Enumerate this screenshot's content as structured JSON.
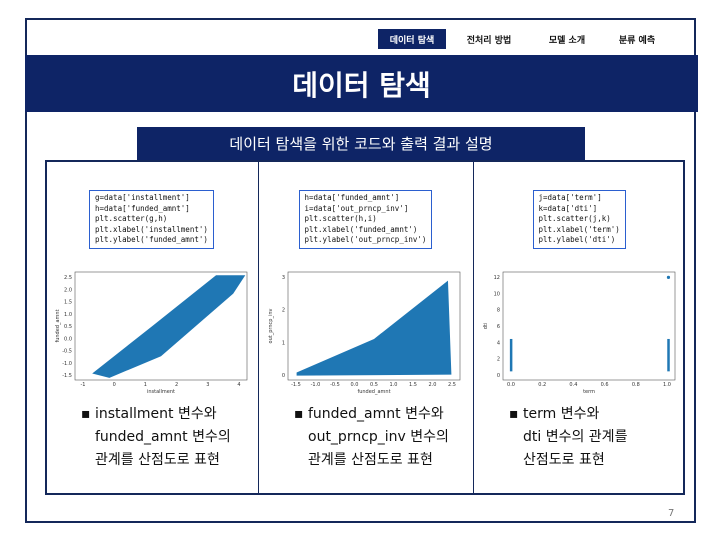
{
  "nav": {
    "items": [
      "데이터 탐색",
      "전처리 방법",
      "모델 소개",
      "분류 예측"
    ]
  },
  "title": "데이터 탐색",
  "subtitle": "데이터 탐색을 위한 코드와 출력 결과 설명",
  "panels": [
    {
      "code": [
        "g=data['installment']",
        "h=data['funded_amnt']",
        "plt.scatter(g,h)",
        "plt.xlabel('installment')",
        "plt.ylabel('funded_amnt')"
      ],
      "plot": {
        "xlabel": "installment",
        "ylabel": "funded_amnt",
        "xticks": [
          "-1",
          "0",
          "1",
          "2",
          "3",
          "4"
        ],
        "yticks": [
          "2.5",
          "2.0",
          "1.5",
          "1.0",
          "0.5",
          "0.0",
          "-0.5",
          "-1.0",
          "-1.5"
        ]
      },
      "description": [
        "installment 변수와",
        "funded_amnt 변수의",
        "관계를 산점도로 표현"
      ]
    },
    {
      "code": [
        "h=data['funded_amnt']",
        "i=data['out_prncp_inv']",
        "plt.scatter(h,i)",
        "plt.xlabel('funded_amnt')",
        "plt.ylabel('out_prncp_inv')"
      ],
      "plot": {
        "xlabel": "funded_amnt",
        "ylabel": "out_prncp_inv",
        "xticks": [
          "-1.5",
          "-1.0",
          "-0.5",
          "0.0",
          "0.5",
          "1.0",
          "1.5",
          "2.0",
          "2.5"
        ],
        "yticks": [
          "3",
          "2",
          "1",
          "0"
        ]
      },
      "description": [
        "funded_amnt 변수와",
        "out_prncp_inv 변수의",
        "관계를 산점도로 표현"
      ]
    },
    {
      "code": [
        "j=data['term']",
        "k=data['dti']",
        "plt.scatter(j,k)",
        "plt.xlabel('term')",
        "plt.ylabel('dti')"
      ],
      "plot": {
        "xlabel": "term",
        "ylabel": "dti",
        "xticks": [
          "0.0",
          "0.2",
          "0.4",
          "0.6",
          "0.8",
          "1.0"
        ],
        "yticks": [
          "12",
          "10",
          "8",
          "6",
          "4",
          "2",
          "0"
        ]
      },
      "description": [
        "term 변수와",
        "dti 변수의 관계를",
        "산점도로 표현"
      ]
    }
  ],
  "page_number": "7"
}
